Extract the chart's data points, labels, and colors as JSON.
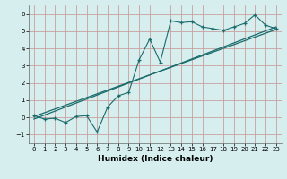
{
  "title": "",
  "xlabel": "Humidex (Indice chaleur)",
  "bg_color": "#d6eeee",
  "grid_color": "#c8a0a0",
  "line_color": "#1a6b6b",
  "xlim": [
    -0.5,
    23.5
  ],
  "ylim": [
    -1.5,
    6.5
  ],
  "xticks": [
    0,
    1,
    2,
    3,
    4,
    5,
    6,
    7,
    8,
    9,
    10,
    11,
    12,
    13,
    14,
    15,
    16,
    17,
    18,
    19,
    20,
    21,
    22,
    23
  ],
  "yticks": [
    -1,
    0,
    1,
    2,
    3,
    4,
    5,
    6
  ],
  "scatter_x": [
    0,
    1,
    2,
    3,
    4,
    5,
    6,
    7,
    8,
    9,
    10,
    11,
    12,
    13,
    14,
    15,
    16,
    17,
    18,
    19,
    20,
    21,
    22,
    23
  ],
  "scatter_y": [
    0.1,
    -0.1,
    -0.05,
    -0.3,
    0.05,
    0.1,
    -0.85,
    0.6,
    1.25,
    1.45,
    3.35,
    4.55,
    3.2,
    5.6,
    5.5,
    5.55,
    5.25,
    5.15,
    5.05,
    5.25,
    5.45,
    5.95,
    5.35,
    5.15
  ],
  "reg_line1_x": [
    0,
    23
  ],
  "reg_line1_y": [
    0.05,
    5.1
  ],
  "reg_line2_x": [
    0,
    23
  ],
  "reg_line2_y": [
    -0.1,
    5.25
  ]
}
